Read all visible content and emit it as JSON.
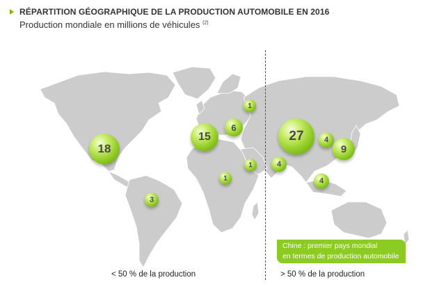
{
  "header": {
    "title": "RÉPARTITION GÉOGRAPHIQUE DE LA PRODUCTION AUTOMOBILE EN 2016",
    "subtitle": "Production mondiale en millions de véhicules",
    "footnote_ref": "(2)"
  },
  "colors": {
    "accent": "#7ab800",
    "land": "#cccccc",
    "callout_bg": "#8ccc22"
  },
  "bubbles": {
    "usa": "18",
    "brazil": "3",
    "europe_west": "15",
    "europe_central": "6",
    "russia": "1",
    "africa": "1",
    "middle_east": "1",
    "india": "4",
    "china": "27",
    "korea": "4",
    "japan": "9",
    "southeast_asia": "4"
  },
  "callout": {
    "line1": "Chine : premier pays mondial",
    "line2": "en termes de production automobile"
  },
  "labels": {
    "left": "< 50 % de la production",
    "right": "> 50 % de la production"
  }
}
